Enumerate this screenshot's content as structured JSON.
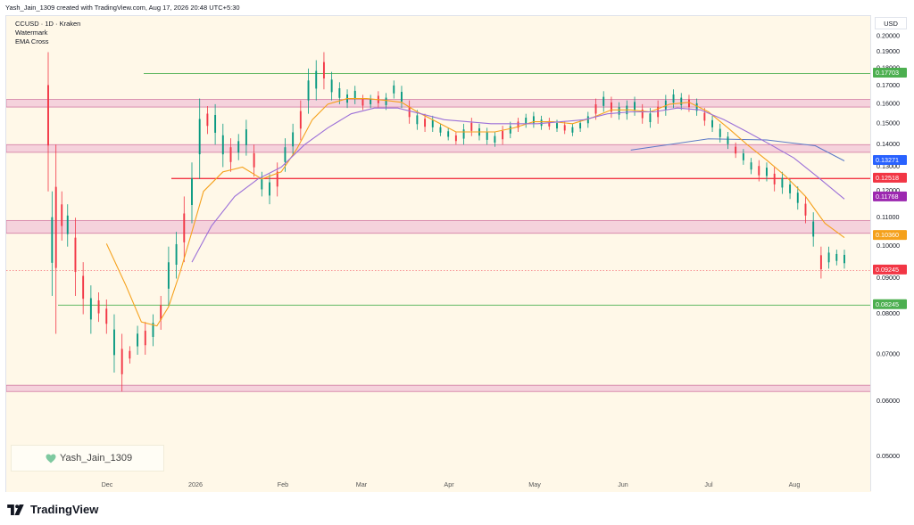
{
  "header": {
    "created_line": "Yash_Jain_1309 created with TradingView.com, Aug 17, 2026 20:48 UTC+5:30",
    "symbol_line": "CCUSD · 1D · Kraken",
    "indicator_1": "Watermark",
    "indicator_2": "EMA Cross"
  },
  "currency_button": "USD",
  "watermark": {
    "text": "Yash_Jain_1309",
    "icon": "heart-icon"
  },
  "brand": {
    "logo_icon": "tradingview-logo-icon",
    "text": "TradingView"
  },
  "colors": {
    "background": "#fff8e8",
    "up": "#089981",
    "down": "#f23645",
    "ema_fast": "#f5a11c",
    "ema_slow": "#9b6fd8",
    "zone_fill": "#f2c6d8",
    "zone_border": "#d27aa2",
    "green_level": "#4caf50",
    "red_level": "#f23645",
    "blue_line": "#5b79c7"
  },
  "chart_data": {
    "type": "candlestick",
    "title": "CCUSD · 1D · Kraken",
    "y_scale": "log",
    "ylim": [
      0.0445,
      0.214
    ],
    "y_ticks": [
      "0.05000",
      "0.06000",
      "0.07000",
      "0.08000",
      "0.09000",
      "0.10000",
      "0.11000",
      "0.12000",
      "0.13000",
      "0.14000",
      "0.15000",
      "0.16000",
      "0.17000",
      "0.18000",
      "0.19000",
      "0.20000"
    ],
    "x_ticks": [
      "Dec",
      "2026",
      "Feb",
      "Mar",
      "Apr",
      "May",
      "Jun",
      "Jul",
      "Aug"
    ],
    "series": [
      {
        "name": "Price",
        "points": [
          [
            0,
            0.19,
            0.12
          ],
          [
            2,
            0.12,
            0.085
          ],
          [
            4,
            0.14,
            0.075
          ],
          [
            7,
            0.12,
            0.102
          ],
          [
            10,
            0.115,
            0.1
          ],
          [
            14,
            0.11,
            0.085
          ],
          [
            18,
            0.095,
            0.08
          ],
          [
            22,
            0.088,
            0.075
          ],
          [
            26,
            0.086,
            0.078
          ],
          [
            30,
            0.084,
            0.075
          ],
          [
            34,
            0.08,
            0.066
          ],
          [
            38,
            0.075,
            0.062
          ],
          [
            42,
            0.072,
            0.068
          ],
          [
            46,
            0.077,
            0.07
          ],
          [
            50,
            0.078,
            0.07
          ],
          [
            54,
            0.08,
            0.072
          ],
          [
            58,
            0.085,
            0.076
          ],
          [
            62,
            0.1,
            0.082
          ],
          [
            66,
            0.105,
            0.09
          ],
          [
            70,
            0.118,
            0.095
          ],
          [
            74,
            0.132,
            0.108
          ],
          [
            78,
            0.163,
            0.125
          ],
          [
            82,
            0.159,
            0.145
          ],
          [
            86,
            0.16,
            0.14
          ],
          [
            90,
            0.15,
            0.13
          ],
          [
            94,
            0.143,
            0.128
          ],
          [
            98,
            0.145,
            0.133
          ],
          [
            102,
            0.152,
            0.135
          ],
          [
            106,
            0.14,
            0.126
          ],
          [
            110,
            0.128,
            0.118
          ],
          [
            114,
            0.127,
            0.115
          ],
          [
            118,
            0.132,
            0.118
          ],
          [
            122,
            0.143,
            0.128
          ],
          [
            126,
            0.15,
            0.135
          ],
          [
            130,
            0.162,
            0.142
          ],
          [
            134,
            0.18,
            0.155
          ],
          [
            138,
            0.185,
            0.162
          ],
          [
            142,
            0.19,
            0.168
          ],
          [
            146,
            0.178,
            0.162
          ],
          [
            150,
            0.172,
            0.16
          ],
          [
            154,
            0.168,
            0.158
          ],
          [
            158,
            0.17,
            0.16
          ],
          [
            162,
            0.165,
            0.157
          ],
          [
            166,
            0.165,
            0.158
          ],
          [
            170,
            0.167,
            0.158
          ],
          [
            174,
            0.166,
            0.157
          ],
          [
            178,
            0.173,
            0.163
          ],
          [
            182,
            0.17,
            0.158
          ],
          [
            186,
            0.162,
            0.15
          ],
          [
            190,
            0.157,
            0.147
          ],
          [
            194,
            0.155,
            0.146
          ],
          [
            198,
            0.154,
            0.146
          ],
          [
            202,
            0.15,
            0.144
          ],
          [
            206,
            0.148,
            0.142
          ],
          [
            210,
            0.146,
            0.14
          ],
          [
            214,
            0.15,
            0.14
          ],
          [
            218,
            0.153,
            0.144
          ],
          [
            222,
            0.15,
            0.142
          ],
          [
            226,
            0.148,
            0.14
          ],
          [
            230,
            0.146,
            0.139
          ],
          [
            234,
            0.149,
            0.14
          ],
          [
            238,
            0.151,
            0.143
          ],
          [
            242,
            0.153,
            0.146
          ],
          [
            246,
            0.155,
            0.148
          ],
          [
            250,
            0.156,
            0.148
          ],
          [
            254,
            0.154,
            0.147
          ],
          [
            258,
            0.153,
            0.147
          ],
          [
            262,
            0.152,
            0.146
          ],
          [
            266,
            0.151,
            0.145
          ],
          [
            270,
            0.15,
            0.144
          ],
          [
            274,
            0.152,
            0.146
          ],
          [
            278,
            0.156,
            0.148
          ],
          [
            282,
            0.163,
            0.152
          ],
          [
            286,
            0.167,
            0.156
          ],
          [
            290,
            0.164,
            0.153
          ],
          [
            294,
            0.161,
            0.152
          ],
          [
            298,
            0.162,
            0.152
          ],
          [
            302,
            0.164,
            0.154
          ],
          [
            306,
            0.16,
            0.15
          ],
          [
            310,
            0.158,
            0.148
          ],
          [
            314,
            0.162,
            0.15
          ],
          [
            318,
            0.165,
            0.154
          ],
          [
            322,
            0.168,
            0.158
          ],
          [
            326,
            0.166,
            0.157
          ],
          [
            330,
            0.165,
            0.156
          ],
          [
            334,
            0.163,
            0.154
          ],
          [
            338,
            0.158,
            0.149
          ],
          [
            342,
            0.154,
            0.146
          ],
          [
            346,
            0.15,
            0.141
          ],
          [
            350,
            0.146,
            0.138
          ],
          [
            354,
            0.141,
            0.134
          ],
          [
            358,
            0.138,
            0.131
          ],
          [
            362,
            0.134,
            0.127
          ],
          [
            366,
            0.133,
            0.124
          ],
          [
            370,
            0.132,
            0.124
          ],
          [
            374,
            0.13,
            0.12
          ],
          [
            378,
            0.128,
            0.119
          ],
          [
            382,
            0.125,
            0.117
          ],
          [
            386,
            0.122,
            0.113
          ],
          [
            390,
            0.118,
            0.108
          ],
          [
            394,
            0.112,
            0.1
          ],
          [
            398,
            0.1,
            0.09
          ],
          [
            402,
            0.1,
            0.093
          ],
          [
            406,
            0.099,
            0.094
          ],
          [
            410,
            0.099,
            0.093
          ]
        ]
      },
      {
        "name": "EMA fast",
        "points": [
          [
            30,
            0.101
          ],
          [
            40,
            0.088
          ],
          [
            48,
            0.078
          ],
          [
            56,
            0.077
          ],
          [
            62,
            0.082
          ],
          [
            68,
            0.092
          ],
          [
            74,
            0.105
          ],
          [
            80,
            0.12
          ],
          [
            90,
            0.128
          ],
          [
            100,
            0.13
          ],
          [
            110,
            0.125
          ],
          [
            120,
            0.128
          ],
          [
            128,
            0.138
          ],
          [
            136,
            0.152
          ],
          [
            144,
            0.16
          ],
          [
            154,
            0.163
          ],
          [
            164,
            0.163
          ],
          [
            174,
            0.162
          ],
          [
            182,
            0.161
          ],
          [
            190,
            0.156
          ],
          [
            200,
            0.151
          ],
          [
            210,
            0.146
          ],
          [
            220,
            0.146
          ],
          [
            230,
            0.146
          ],
          [
            240,
            0.148
          ],
          [
            250,
            0.151
          ],
          [
            260,
            0.151
          ],
          [
            270,
            0.15
          ],
          [
            280,
            0.153
          ],
          [
            290,
            0.157
          ],
          [
            300,
            0.157
          ],
          [
            310,
            0.156
          ],
          [
            320,
            0.16
          ],
          [
            330,
            0.161
          ],
          [
            340,
            0.156
          ],
          [
            350,
            0.148
          ],
          [
            360,
            0.14
          ],
          [
            370,
            0.133
          ],
          [
            380,
            0.126
          ],
          [
            390,
            0.118
          ],
          [
            400,
            0.108
          ],
          [
            410,
            0.103
          ]
        ]
      },
      {
        "name": "EMA slow",
        "points": [
          [
            74,
            0.095
          ],
          [
            84,
            0.107
          ],
          [
            96,
            0.118
          ],
          [
            108,
            0.125
          ],
          [
            120,
            0.13
          ],
          [
            132,
            0.14
          ],
          [
            144,
            0.148
          ],
          [
            156,
            0.155
          ],
          [
            168,
            0.158
          ],
          [
            180,
            0.158
          ],
          [
            192,
            0.155
          ],
          [
            204,
            0.152
          ],
          [
            216,
            0.151
          ],
          [
            228,
            0.15
          ],
          [
            240,
            0.15
          ],
          [
            252,
            0.15
          ],
          [
            264,
            0.151
          ],
          [
            276,
            0.152
          ],
          [
            288,
            0.155
          ],
          [
            300,
            0.156
          ],
          [
            312,
            0.156
          ],
          [
            324,
            0.158
          ],
          [
            336,
            0.157
          ],
          [
            348,
            0.152
          ],
          [
            360,
            0.146
          ],
          [
            372,
            0.14
          ],
          [
            384,
            0.134
          ],
          [
            396,
            0.126
          ],
          [
            410,
            0.117
          ]
        ]
      }
    ],
    "horizontal_levels": [
      {
        "value": 0.17703,
        "color": "green_level",
        "label": "0.17703"
      },
      {
        "value": 0.12518,
        "color": "red_level",
        "label": "0.12518"
      },
      {
        "value": 0.08245,
        "color": "green_level",
        "label": "0.08245"
      }
    ],
    "zones": [
      {
        "low": 0.1585,
        "high": 0.1625
      },
      {
        "low": 0.1365,
        "high": 0.14
      },
      {
        "low": 0.1045,
        "high": 0.109
      },
      {
        "low": 0.062,
        "high": 0.0633
      }
    ],
    "trend_line": {
      "label": "0.13271",
      "points": [
        [
          300,
          0.1375
        ],
        [
          340,
          0.1427
        ],
        [
          370,
          0.1422
        ],
        [
          395,
          0.1395
        ],
        [
          410,
          0.1327
        ]
      ]
    },
    "price_tags": [
      {
        "value": 0.17703,
        "label": "0.17703",
        "color": "#4caf50"
      },
      {
        "value": 0.13271,
        "label": "0.13271",
        "color": "#2962ff"
      },
      {
        "value": 0.12518,
        "label": "0.12518",
        "color": "#f23645"
      },
      {
        "value": 0.11768,
        "label": "0.11768",
        "color": "#9c27b0"
      },
      {
        "value": 0.1036,
        "label": "0.10360",
        "color": "#f5a11c"
      },
      {
        "value": 0.09245,
        "label": "0.09245",
        "color": "#f23645"
      },
      {
        "value": 0.08245,
        "label": "0.08245",
        "color": "#4caf50"
      }
    ],
    "current_price": 0.09245,
    "grid": false
  }
}
